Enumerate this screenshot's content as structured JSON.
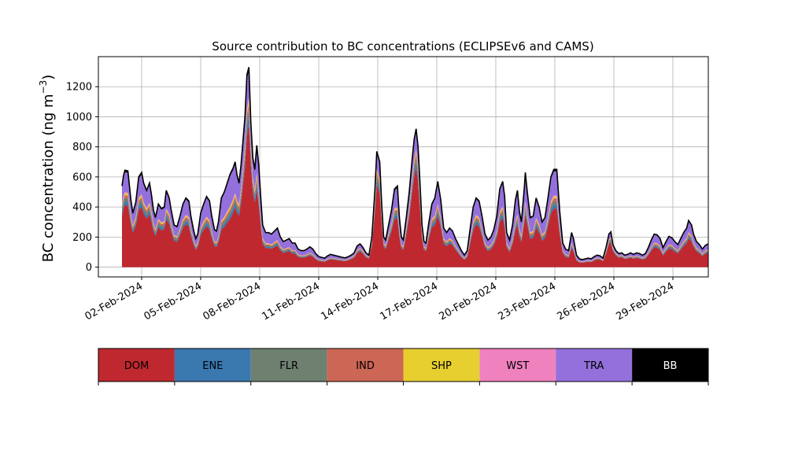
{
  "chart_data": {
    "type": "area",
    "stacked": true,
    "title": "Source contribution to BC concentrations (ECLIPSEv6 and CAMS)",
    "ylabel": "BC concentration (ng m",
    "ylabel_sup": "−3",
    "ylabel_close": ")",
    "xlabel": "",
    "ylim": [
      -65,
      1400
    ],
    "xlim": [
      -1.2,
      29.8
    ],
    "grid": true,
    "yticks": [
      0,
      200,
      400,
      600,
      800,
      1000,
      1200
    ],
    "xticks": [
      {
        "day": 1,
        "label": "02-Feb-2024"
      },
      {
        "day": 4,
        "label": "05-Feb-2024"
      },
      {
        "day": 7,
        "label": "08-Feb-2024"
      },
      {
        "day": 10,
        "label": "11-Feb-2024"
      },
      {
        "day": 13,
        "label": "14-Feb-2024"
      },
      {
        "day": 16,
        "label": "17-Feb-2024"
      },
      {
        "day": 19,
        "label": "20-Feb-2024"
      },
      {
        "day": 22,
        "label": "23-Feb-2024"
      },
      {
        "day": 25,
        "label": "26-Feb-2024"
      },
      {
        "day": 28,
        "label": "29-Feb-2024"
      }
    ],
    "total_points": [
      [
        0.0,
        540
      ],
      [
        0.08,
        610
      ],
      [
        0.15,
        645
      ],
      [
        0.3,
        640
      ],
      [
        0.45,
        450
      ],
      [
        0.55,
        360
      ],
      [
        0.7,
        430
      ],
      [
        0.85,
        600
      ],
      [
        1.0,
        630
      ],
      [
        1.1,
        560
      ],
      [
        1.25,
        510
      ],
      [
        1.4,
        560
      ],
      [
        1.5,
        480
      ],
      [
        1.6,
        380
      ],
      [
        1.7,
        330
      ],
      [
        1.85,
        420
      ],
      [
        2.0,
        390
      ],
      [
        2.15,
        400
      ],
      [
        2.25,
        510
      ],
      [
        2.4,
        460
      ],
      [
        2.5,
        380
      ],
      [
        2.65,
        280
      ],
      [
        2.8,
        270
      ],
      [
        2.95,
        340
      ],
      [
        3.1,
        420
      ],
      [
        3.25,
        460
      ],
      [
        3.4,
        440
      ],
      [
        3.5,
        340
      ],
      [
        3.65,
        240
      ],
      [
        3.75,
        190
      ],
      [
        3.85,
        220
      ],
      [
        4.0,
        360
      ],
      [
        4.15,
        420
      ],
      [
        4.3,
        470
      ],
      [
        4.45,
        440
      ],
      [
        4.55,
        350
      ],
      [
        4.7,
        250
      ],
      [
        4.8,
        240
      ],
      [
        4.9,
        300
      ],
      [
        5.05,
        460
      ],
      [
        5.2,
        500
      ],
      [
        5.35,
        560
      ],
      [
        5.5,
        620
      ],
      [
        5.65,
        660
      ],
      [
        5.75,
        700
      ],
      [
        5.85,
        610
      ],
      [
        5.95,
        560
      ],
      [
        6.05,
        680
      ],
      [
        6.15,
        840
      ],
      [
        6.25,
        1000
      ],
      [
        6.35,
        1280
      ],
      [
        6.45,
        1330
      ],
      [
        6.55,
        960
      ],
      [
        6.65,
        730
      ],
      [
        6.75,
        650
      ],
      [
        6.85,
        810
      ],
      [
        6.95,
        680
      ],
      [
        7.05,
        470
      ],
      [
        7.15,
        280
      ],
      [
        7.3,
        230
      ],
      [
        7.45,
        230
      ],
      [
        7.6,
        220
      ],
      [
        7.75,
        240
      ],
      [
        7.9,
        260
      ],
      [
        8.05,
        200
      ],
      [
        8.2,
        170
      ],
      [
        8.35,
        180
      ],
      [
        8.5,
        190
      ],
      [
        8.65,
        160
      ],
      [
        8.8,
        160
      ],
      [
        8.95,
        120
      ],
      [
        9.1,
        110
      ],
      [
        9.25,
        110
      ],
      [
        9.4,
        120
      ],
      [
        9.55,
        135
      ],
      [
        9.7,
        120
      ],
      [
        9.85,
        90
      ],
      [
        10.0,
        70
      ],
      [
        10.15,
        65
      ],
      [
        10.3,
        60
      ],
      [
        10.45,
        75
      ],
      [
        10.6,
        85
      ],
      [
        10.75,
        80
      ],
      [
        10.9,
        75
      ],
      [
        11.05,
        70
      ],
      [
        11.2,
        65
      ],
      [
        11.35,
        62
      ],
      [
        11.5,
        70
      ],
      [
        11.65,
        80
      ],
      [
        11.8,
        95
      ],
      [
        11.95,
        140
      ],
      [
        12.1,
        155
      ],
      [
        12.25,
        130
      ],
      [
        12.4,
        95
      ],
      [
        12.55,
        80
      ],
      [
        12.7,
        200
      ],
      [
        12.85,
        500
      ],
      [
        12.95,
        770
      ],
      [
        13.1,
        700
      ],
      [
        13.2,
        420
      ],
      [
        13.3,
        200
      ],
      [
        13.4,
        180
      ],
      [
        13.55,
        280
      ],
      [
        13.7,
        380
      ],
      [
        13.85,
        520
      ],
      [
        14.0,
        540
      ],
      [
        14.1,
        330
      ],
      [
        14.2,
        200
      ],
      [
        14.3,
        180
      ],
      [
        14.45,
        330
      ],
      [
        14.6,
        500
      ],
      [
        14.75,
        720
      ],
      [
        14.85,
        850
      ],
      [
        14.95,
        920
      ],
      [
        15.05,
        800
      ],
      [
        15.15,
        550
      ],
      [
        15.25,
        280
      ],
      [
        15.35,
        170
      ],
      [
        15.45,
        160
      ],
      [
        15.6,
        300
      ],
      [
        15.75,
        420
      ],
      [
        15.9,
        460
      ],
      [
        16.05,
        570
      ],
      [
        16.2,
        450
      ],
      [
        16.35,
        260
      ],
      [
        16.5,
        230
      ],
      [
        16.65,
        260
      ],
      [
        16.8,
        240
      ],
      [
        16.95,
        190
      ],
      [
        17.1,
        150
      ],
      [
        17.25,
        110
      ],
      [
        17.4,
        80
      ],
      [
        17.55,
        110
      ],
      [
        17.7,
        260
      ],
      [
        17.85,
        400
      ],
      [
        18.0,
        460
      ],
      [
        18.15,
        440
      ],
      [
        18.3,
        340
      ],
      [
        18.45,
        220
      ],
      [
        18.6,
        180
      ],
      [
        18.75,
        200
      ],
      [
        18.9,
        250
      ],
      [
        19.05,
        340
      ],
      [
        19.2,
        520
      ],
      [
        19.35,
        570
      ],
      [
        19.45,
        470
      ],
      [
        19.55,
        230
      ],
      [
        19.7,
        180
      ],
      [
        19.85,
        280
      ],
      [
        20.0,
        450
      ],
      [
        20.1,
        510
      ],
      [
        20.2,
        370
      ],
      [
        20.3,
        300
      ],
      [
        20.45,
        530
      ],
      [
        20.5,
        630
      ],
      [
        20.6,
        500
      ],
      [
        20.75,
        330
      ],
      [
        20.9,
        340
      ],
      [
        21.05,
        460
      ],
      [
        21.2,
        400
      ],
      [
        21.35,
        300
      ],
      [
        21.5,
        330
      ],
      [
        21.65,
        460
      ],
      [
        21.8,
        600
      ],
      [
        21.95,
        650
      ],
      [
        22.1,
        650
      ],
      [
        22.25,
        370
      ],
      [
        22.4,
        160
      ],
      [
        22.55,
        120
      ],
      [
        22.7,
        110
      ],
      [
        22.85,
        230
      ],
      [
        22.95,
        190
      ],
      [
        23.1,
        80
      ],
      [
        23.25,
        55
      ],
      [
        23.4,
        50
      ],
      [
        23.55,
        55
      ],
      [
        23.7,
        60
      ],
      [
        23.85,
        55
      ],
      [
        24.0,
        70
      ],
      [
        24.15,
        80
      ],
      [
        24.3,
        75
      ],
      [
        24.45,
        60
      ],
      [
        24.6,
        130
      ],
      [
        24.75,
        220
      ],
      [
        24.85,
        235
      ],
      [
        24.95,
        150
      ],
      [
        25.1,
        110
      ],
      [
        25.25,
        90
      ],
      [
        25.4,
        95
      ],
      [
        25.55,
        80
      ],
      [
        25.7,
        85
      ],
      [
        25.85,
        95
      ],
      [
        26.0,
        85
      ],
      [
        26.15,
        95
      ],
      [
        26.3,
        90
      ],
      [
        26.45,
        80
      ],
      [
        26.6,
        90
      ],
      [
        26.75,
        130
      ],
      [
        26.9,
        180
      ],
      [
        27.05,
        220
      ],
      [
        27.2,
        215
      ],
      [
        27.35,
        190
      ],
      [
        27.5,
        130
      ],
      [
        27.65,
        170
      ],
      [
        27.8,
        205
      ],
      [
        27.95,
        195
      ],
      [
        28.1,
        170
      ],
      [
        28.25,
        150
      ],
      [
        28.4,
        190
      ],
      [
        28.55,
        230
      ],
      [
        28.7,
        260
      ],
      [
        28.8,
        310
      ],
      [
        28.95,
        280
      ],
      [
        29.05,
        220
      ],
      [
        29.2,
        170
      ],
      [
        29.35,
        150
      ],
      [
        29.5,
        120
      ],
      [
        29.65,
        145
      ],
      [
        29.8,
        155
      ]
    ],
    "dom_fraction": [
      [
        0,
        0.64
      ],
      [
        3.5,
        0.62
      ],
      [
        5.5,
        0.52
      ],
      [
        6.5,
        0.72
      ],
      [
        7.2,
        0.55
      ],
      [
        10,
        0.58
      ],
      [
        12.9,
        0.72
      ],
      [
        14,
        0.6
      ],
      [
        14.95,
        0.72
      ],
      [
        16,
        0.6
      ],
      [
        18,
        0.62
      ],
      [
        20,
        0.55
      ],
      [
        22,
        0.6
      ],
      [
        23,
        0.55
      ],
      [
        25,
        0.72
      ],
      [
        27,
        0.6
      ],
      [
        29.8,
        0.62
      ]
    ],
    "layer_fractions": {
      "ENE": 0.04,
      "FLR": 0.035,
      "IND": 0.03,
      "SHP": 0.02,
      "WST": 0.012,
      "BB": 0.02
    },
    "series": [
      {
        "name": "DOM",
        "color": "#c0282f",
        "text_color": "#000000"
      },
      {
        "name": "ENE",
        "color": "#3a78b0",
        "text_color": "#000000"
      },
      {
        "name": "FLR",
        "color": "#6e8070",
        "text_color": "#000000"
      },
      {
        "name": "IND",
        "color": "#cc6655",
        "text_color": "#000000"
      },
      {
        "name": "SHP",
        "color": "#e6cf2e",
        "text_color": "#000000"
      },
      {
        "name": "WST",
        "color": "#ef82be",
        "text_color": "#000000"
      },
      {
        "name": "TRA",
        "color": "#9370db",
        "text_color": "#000000"
      },
      {
        "name": "BB",
        "color": "#000000",
        "text_color": "#ffffff"
      }
    ],
    "legend_position": "bottom"
  }
}
